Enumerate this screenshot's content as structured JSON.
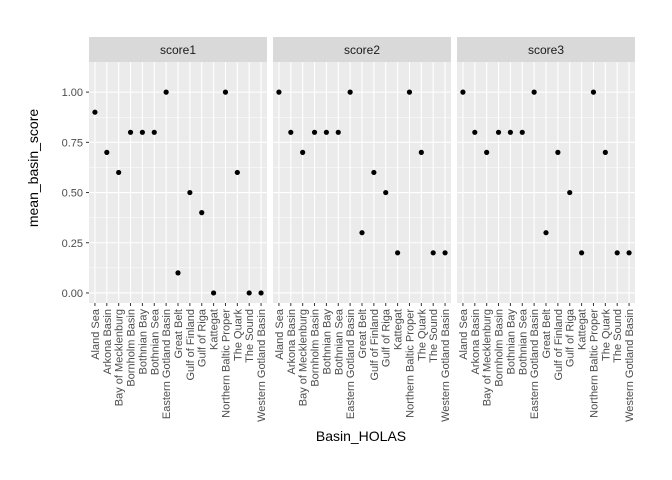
{
  "chart_data": {
    "type": "scatter",
    "xlabel": "Basin_HOLAS",
    "ylabel": "mean_basin_score",
    "ylim": [
      -0.05,
      1.15
    ],
    "yticks": [
      0.0,
      0.25,
      0.5,
      0.75,
      1.0
    ],
    "ytick_labels": [
      "0.00",
      "0.25",
      "0.50",
      "0.75",
      "1.00"
    ],
    "grid": true,
    "categories": [
      "Aland Sea",
      "Arkona Basin",
      "Bay of Mecklenburg",
      "Bornholm Basin",
      "Bothnian Bay",
      "Bothnian Sea",
      "Eastern Gotland Basin",
      "Great Belt",
      "Gulf of Finland",
      "Gulf of Riga",
      "Kattegat",
      "Northern Baltic Proper",
      "The Quark",
      "The Sound",
      "Western Gotland Basin"
    ],
    "panels": [
      {
        "name": "score1",
        "values": [
          0.9,
          0.7,
          0.6,
          0.8,
          0.8,
          0.8,
          1.0,
          0.1,
          0.5,
          0.4,
          0.0,
          1.0,
          0.6,
          0.0,
          0.0
        ]
      },
      {
        "name": "score2",
        "values": [
          1.0,
          0.8,
          0.7,
          0.8,
          0.8,
          0.8,
          1.0,
          0.3,
          0.6,
          0.5,
          0.2,
          1.0,
          0.7,
          0.2,
          0.2
        ]
      },
      {
        "name": "score3",
        "values": [
          1.0,
          0.8,
          0.7,
          0.8,
          0.8,
          0.8,
          1.0,
          0.3,
          0.7,
          0.5,
          0.2,
          1.0,
          0.7,
          0.2,
          0.2
        ]
      }
    ],
    "colors": {
      "panel_background": "#ebebeb",
      "strip_background": "#d9d9d9",
      "grid": "#ffffff",
      "point": "#000000"
    }
  }
}
